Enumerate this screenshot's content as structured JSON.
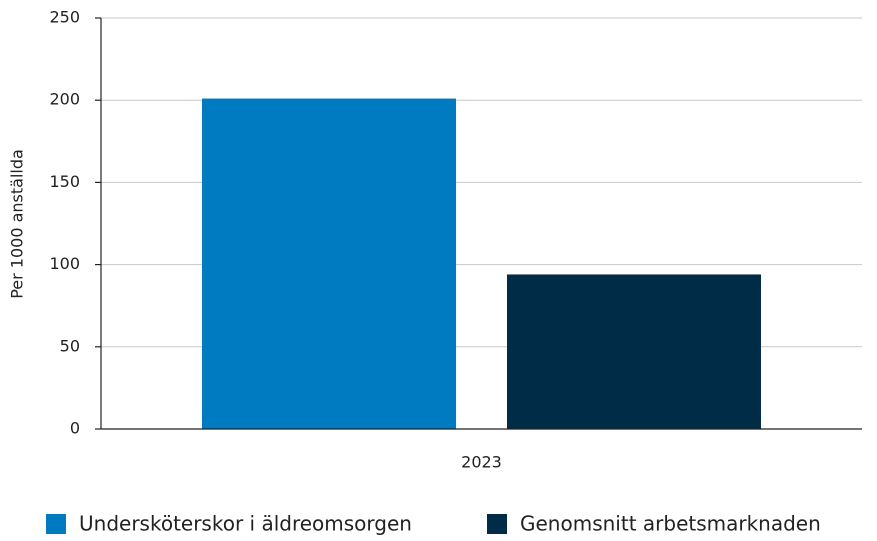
{
  "chart_data": {
    "type": "bar",
    "y_label": "Per 1000 anställda",
    "categories": [
      "2023"
    ],
    "series": [
      {
        "name": "Undersköterskor i äldreomsorgen",
        "color": "#007ac1",
        "values": [
          201
        ]
      },
      {
        "name": "Genomsnitt arbetsmarknaden",
        "color": "#002c47",
        "values": [
          94
        ]
      }
    ],
    "ylim": [
      0,
      250
    ],
    "yticks": [
      0,
      50,
      100,
      150,
      200,
      250
    ],
    "grid": true,
    "legend": "bottom"
  }
}
